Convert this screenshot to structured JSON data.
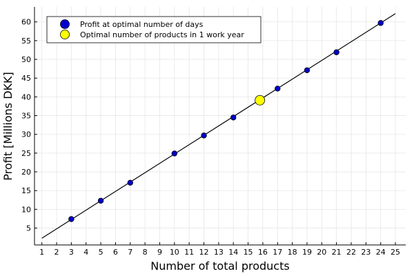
{
  "chart_data": {
    "type": "scatter",
    "xlabel": "Number of total products",
    "ylabel": "Profit [Millions DKK]",
    "xlim": [
      0.5,
      25.7
    ],
    "ylim": [
      0.5,
      64
    ],
    "x_ticks": [
      1,
      2,
      3,
      4,
      5,
      6,
      7,
      8,
      9,
      10,
      11,
      12,
      13,
      14,
      15,
      16,
      17,
      18,
      19,
      20,
      21,
      22,
      23,
      24,
      25
    ],
    "y_ticks": [
      5,
      10,
      15,
      20,
      25,
      30,
      35,
      40,
      45,
      50,
      55,
      60
    ],
    "grid": true,
    "legend_position": "top-left",
    "line": {
      "x": [
        1,
        25
      ],
      "y": [
        2.3,
        62.2
      ],
      "color": "#000000"
    },
    "series": [
      {
        "name": "Profit at optimal number of days",
        "color": "#0000cc",
        "x": [
          3,
          5,
          7,
          10,
          12,
          14,
          17,
          19,
          21,
          24
        ],
        "y": [
          7.4,
          12.3,
          17.1,
          24.9,
          29.7,
          34.5,
          42.2,
          47.1,
          51.9,
          59.7
        ]
      },
      {
        "name": "Optimal number of products in 1 work year",
        "color": "#ffff00",
        "x": [
          15.8
        ],
        "y": [
          39.1
        ]
      }
    ]
  }
}
